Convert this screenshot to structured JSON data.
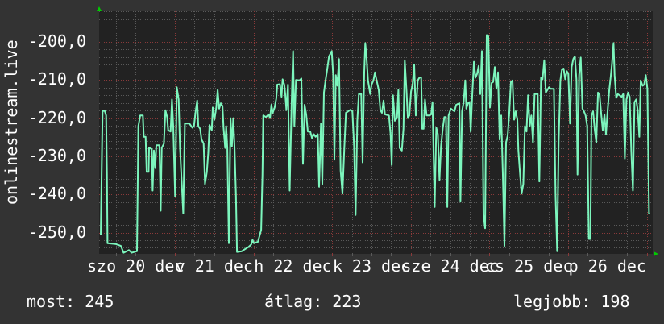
{
  "colors": {
    "background": "#333333",
    "plot_background": "#222222",
    "line": "#7cf6bd",
    "grid_minor": "#5a5a5a",
    "grid_major": "#8a3a3a",
    "arrow": "#00cc00"
  },
  "footer": {
    "current": "most: 245",
    "average": "átlag: 223",
    "best": "legjobb: 198"
  },
  "chart_data": {
    "type": "line",
    "ylabel": "onlinestream.live",
    "ylim": [
      -255.6,
      -192
    ],
    "yticks": [
      -200,
      -210,
      -220,
      -230,
      -240,
      -250
    ],
    "ytick_labels": [
      "-200,0",
      "-210,0",
      "-220,0",
      "-230,0",
      "-240,0",
      "-250,0"
    ],
    "xlim": [
      "dec 20 00:53",
      "dec 27 01:50"
    ],
    "xtick_labels": [
      {
        "at": "dec 20 12:00",
        "label": "szo 20 dec"
      },
      {
        "at": "dec 21 12:00",
        "label": "v 21 dec"
      },
      {
        "at": "dec 22 12:00",
        "label": "h 22 dec"
      },
      {
        "at": "dec 23 12:00",
        "label": "k 23 dec"
      },
      {
        "at": "dec 24 12:00",
        "label": "sze 24 dec"
      },
      {
        "at": "dec 25 12:00",
        "label": "cs 25 dec"
      },
      {
        "at": "dec 26 12:00",
        "label": "p 26 dec"
      }
    ],
    "grid": true,
    "points": [
      [
        "dec 20 01:23",
        -250.7
      ],
      [
        "dec 20 01:57",
        -218.1
      ],
      [
        "dec 20 02:37",
        -218.1
      ],
      [
        "dec 20 03:01",
        -219.3
      ],
      [
        "dec 20 03:16",
        -234.8
      ],
      [
        "dec 20 03:26",
        -252.8
      ],
      [
        "dec 20 05:53",
        -253.0
      ],
      [
        "dec 20 07:32",
        -253.5
      ],
      [
        "dec 20 08:21",
        -255.3
      ],
      [
        "dec 20 09:59",
        -254.6
      ],
      [
        "dec 20 10:49",
        -255.3
      ],
      [
        "dec 20 12:27",
        -254.9
      ],
      [
        "dec 20 12:52",
        -222.1
      ],
      [
        "dec 20 13:26",
        -219.3
      ],
      [
        "dec 20 14:15",
        -219.3
      ],
      [
        "dec 20 14:30",
        -224.9
      ],
      [
        "dec 20 15:04",
        -224.9
      ],
      [
        "dec 20 15:24",
        -234.1
      ],
      [
        "dec 20 15:59",
        -234.1
      ],
      [
        "dec 20 16:08",
        -227.8
      ],
      [
        "dec 20 16:58",
        -228.1
      ],
      [
        "dec 20 17:13",
        -239.0
      ],
      [
        "dec 20 17:37",
        -228.5
      ],
      [
        "dec 20 18:02",
        -233.1
      ],
      [
        "dec 20 18:21",
        -227.1
      ],
      [
        "dec 20 19:16",
        -227.1
      ],
      [
        "dec 20 19:40",
        -244.3
      ],
      [
        "dec 20 19:59",
        -227.8
      ],
      [
        "dec 20 20:39",
        -226.7
      ],
      [
        "dec 20 21:08",
        -217.9
      ],
      [
        "dec 20 21:38",
        -219.7
      ],
      [
        "dec 20 21:58",
        -223.2
      ],
      [
        "dec 20 22:42",
        -223.5
      ],
      [
        "dec 20 23:07",
        -215.1
      ],
      [
        "dec 20 23:31",
        -222.1
      ],
      [
        "dec 21 00:05",
        -240.5
      ],
      [
        "dec 21 00:35",
        -211.9
      ],
      [
        "dec 21 01:10",
        -215.1
      ],
      [
        "dec 21 01:34",
        -227.8
      ],
      [
        "dec 21 02:33",
        -245.0
      ],
      [
        "dec 21 03:03",
        -221.4
      ],
      [
        "dec 21 04:26",
        -221.4
      ],
      [
        "dec 21 05:20",
        -222.5
      ],
      [
        "dec 21 05:50",
        -222.1
      ],
      [
        "dec 21 06:20",
        -218.2
      ],
      [
        "dec 21 06:49",
        -215.4
      ],
      [
        "dec 21 07:09",
        -222.1
      ],
      [
        "dec 21 07:43",
        -222.8
      ],
      [
        "dec 21 08:08",
        -225.6
      ],
      [
        "dec 21 08:47",
        -226.7
      ],
      [
        "dec 21 09:12",
        -237.3
      ],
      [
        "dec 21 09:46",
        -234.1
      ],
      [
        "dec 21 10:11",
        -229.2
      ],
      [
        "dec 21 10:35",
        -221.8
      ],
      [
        "dec 21 11:15",
        -223.2
      ],
      [
        "dec 21 11:34",
        -217.2
      ],
      [
        "dec 21 12:04",
        -220.4
      ],
      [
        "dec 21 12:38",
        -217.2
      ],
      [
        "dec 21 13:03",
        -212.6
      ],
      [
        "dec 21 13:32",
        -217.5
      ],
      [
        "dec 21 14:02",
        -216.1
      ],
      [
        "dec 21 14:32",
        -216.8
      ],
      [
        "dec 21 14:51",
        -222.5
      ],
      [
        "dec 21 15:21",
        -227.8
      ],
      [
        "dec 21 15:40",
        -222.1
      ],
      [
        "dec 21 16:00",
        -227.8
      ],
      [
        "dec 21 16:29",
        -252.8
      ],
      [
        "dec 21 16:59",
        -220.0
      ],
      [
        "dec 21 17:24",
        -227.4
      ],
      [
        "dec 21 17:49",
        -220.0
      ],
      [
        "dec 21 18:13",
        -227.8
      ],
      [
        "dec 21 18:38",
        -240.1
      ],
      [
        "dec 21 18:57",
        -255.1
      ],
      [
        "dec 21 20:26",
        -254.9
      ],
      [
        "dec 21 21:40",
        -254.2
      ],
      [
        "dec 21 22:29",
        -253.8
      ],
      [
        "dec 21 23:18",
        -253.1
      ],
      [
        "dec 21 23:43",
        -251.9
      ],
      [
        "dec 22 00:07",
        -252.8
      ],
      [
        "dec 22 01:21",
        -252.4
      ],
      [
        "dec 22 02:20",
        -249.3
      ],
      [
        "dec 22 02:44",
        -234.8
      ],
      [
        "dec 22 02:59",
        -219.3
      ],
      [
        "dec 22 03:49",
        -219.7
      ],
      [
        "dec 22 04:38",
        -219.0
      ],
      [
        "dec 22 05:02",
        -220.0
      ],
      [
        "dec 22 05:27",
        -216.5
      ],
      [
        "dec 22 05:52",
        -218.6
      ],
      [
        "dec 22 06:26",
        -217.2
      ],
      [
        "dec 22 06:56",
        -214.9
      ],
      [
        "dec 22 07:15",
        -211.2
      ],
      [
        "dec 22 08:04",
        -211.1
      ],
      [
        "dec 22 08:34",
        -214.4
      ],
      [
        "dec 22 08:53",
        -209.8
      ],
      [
        "dec 22 09:23",
        -211.2
      ],
      [
        "dec 22 09:43",
        -214.0
      ],
      [
        "dec 22 10:02",
        -217.9
      ],
      [
        "dec 22 10:32",
        -211.2
      ],
      [
        "dec 22 11:02",
        -239.0
      ],
      [
        "dec 22 11:39",
        -215.4
      ],
      [
        "dec 22 12:04",
        -202.4
      ],
      [
        "dec 22 12:28",
        -222.1
      ],
      [
        "dec 22 12:58",
        -210.0
      ],
      [
        "dec 22 14:02",
        -210.1
      ],
      [
        "dec 22 14:36",
        -209.6
      ],
      [
        "dec 22 15:06",
        -232.0
      ],
      [
        "dec 22 15:35",
        -216.5
      ],
      [
        "dec 22 16:05",
        -219.0
      ],
      [
        "dec 22 16:34",
        -223.5
      ],
      [
        "dec 22 17:19",
        -223.5
      ],
      [
        "dec 22 17:53",
        -225.3
      ],
      [
        "dec 22 18:23",
        -224.2
      ],
      [
        "dec 22 18:57",
        -224.9
      ],
      [
        "dec 22 19:37",
        -224.2
      ],
      [
        "dec 22 20:01",
        -238.0
      ],
      [
        "dec 22 20:35",
        -221.4
      ],
      [
        "dec 22 21:00",
        -237.3
      ],
      [
        "dec 22 21:29",
        -213.3
      ],
      [
        "dec 22 21:59",
        -210.1
      ],
      [
        "dec 22 22:29",
        -207.3
      ],
      [
        "dec 22 23:03",
        -203.8
      ],
      [
        "dec 22 23:52",
        -202.4
      ],
      [
        "dec 23 00:17",
        -208.4
      ],
      [
        "dec 23 00:41",
        -230.9
      ],
      [
        "dec 23 01:06",
        -208.7
      ],
      [
        "dec 23 01:35",
        -211.5
      ],
      [
        "dec 23 02:05",
        -204.5
      ],
      [
        "dec 23 02:35",
        -233.8
      ],
      [
        "dec 23 03:09",
        -239.8
      ],
      [
        "dec 23 03:43",
        -227.8
      ],
      [
        "dec 23 04:13",
        -218.6
      ],
      [
        "dec 23 05:37",
        -217.8
      ],
      [
        "dec 23 06:11",
        -218.2
      ],
      [
        "dec 23 06:41",
        -227.4
      ],
      [
        "dec 23 07:10",
        -245.4
      ],
      [
        "dec 23 07:40",
        -220.7
      ],
      [
        "dec 23 08:09",
        -213.7
      ],
      [
        "dec 23 08:53",
        -213.7
      ],
      [
        "dec 23 09:18",
        -231.6
      ],
      [
        "dec 23 09:47",
        -208.0
      ],
      [
        "dec 23 10:07",
        -200.3
      ],
      [
        "dec 23 10:32",
        -204.5
      ],
      [
        "dec 23 10:56",
        -210.1
      ],
      [
        "dec 23 11:36",
        -213.7
      ],
      [
        "dec 23 12:01",
        -211.2
      ],
      [
        "dec 23 12:35",
        -210.1
      ],
      [
        "dec 23 13:04",
        -208.0
      ],
      [
        "dec 23 13:34",
        -210.1
      ],
      [
        "dec 23 14:13",
        -212.6
      ],
      [
        "dec 23 14:43",
        -217.9
      ],
      [
        "dec 23 15:12",
        -218.6
      ],
      [
        "dec 23 15:42",
        -215.4
      ],
      [
        "dec 23 16:07",
        -219.0
      ],
      [
        "dec 23 17:20",
        -219.3
      ],
      [
        "dec 23 17:50",
        -224.2
      ],
      [
        "dec 23 18:10",
        -232.3
      ],
      [
        "dec 23 18:34",
        -214.0
      ],
      [
        "dec 23 19:08",
        -220.7
      ],
      [
        "dec 23 19:48",
        -220.0
      ],
      [
        "dec 23 20:13",
        -212.6
      ],
      [
        "dec 23 20:37",
        -227.8
      ],
      [
        "dec 23 21:16",
        -228.5
      ],
      [
        "dec 23 21:46",
        -222.8
      ],
      [
        "dec 23 22:10",
        -204.8
      ],
      [
        "dec 23 22:40",
        -212.6
      ],
      [
        "dec 23 23:05",
        -220.0
      ],
      [
        "dec 23 23:34",
        -219.3
      ],
      [
        "dec 24 00:04",
        -213.0
      ],
      [
        "dec 24 00:33",
        -211.2
      ],
      [
        "dec 24 01:02",
        -205.9
      ],
      [
        "dec 24 01:32",
        -219.3
      ],
      [
        "dec 24 02:07",
        -210.1
      ],
      [
        "dec 24 02:41",
        -209.3
      ],
      [
        "dec 24 03:11",
        -209.4
      ],
      [
        "dec 24 03:30",
        -222.8
      ],
      [
        "dec 24 03:55",
        -222.8
      ],
      [
        "dec 24 04:19",
        -215.1
      ],
      [
        "dec 24 04:49",
        -219.3
      ],
      [
        "dec 24 05:38",
        -219.3
      ],
      [
        "dec 24 06:13",
        -219.0
      ],
      [
        "dec 24 06:37",
        -215.8
      ],
      [
        "dec 24 07:17",
        -243.3
      ],
      [
        "dec 24 07:46",
        -222.5
      ],
      [
        "dec 24 08:16",
        -224.2
      ],
      [
        "dec 24 08:45",
        -236.2
      ],
      [
        "dec 24 09:14",
        -227.4
      ],
      [
        "dec 24 09:44",
        -222.8
      ],
      [
        "dec 24 10:14",
        -219.7
      ],
      [
        "dec 24 10:43",
        -219.7
      ],
      [
        "dec 24 11:08",
        -243.3
      ],
      [
        "dec 24 11:32",
        -219.3
      ],
      [
        "dec 24 12:12",
        -217.5
      ],
      [
        "dec 24 13:20",
        -218.2
      ],
      [
        "dec 24 13:50",
        -216.5
      ],
      [
        "dec 24 14:49",
        -216.1
      ],
      [
        "dec 24 15:09",
        -241.9
      ],
      [
        "dec 24 15:38",
        -218.2
      ],
      [
        "dec 24 16:08",
        -215.8
      ],
      [
        "dec 24 16:37",
        -210.1
      ],
      [
        "dec 24 16:57",
        -217.5
      ],
      [
        "dec 24 17:26",
        -216.1
      ],
      [
        "dec 24 17:56",
        -215.8
      ],
      [
        "dec 24 18:16",
        -223.5
      ],
      [
        "dec 24 18:46",
        -213.7
      ],
      [
        "dec 24 19:15",
        -205.2
      ],
      [
        "dec 24 19:44",
        -209.4
      ],
      [
        "dec 24 20:13",
        -208.4
      ],
      [
        "dec 24 20:42",
        -206.3
      ],
      [
        "dec 24 21:12",
        -213.7
      ],
      [
        "dec 24 21:41",
        -202.4
      ],
      [
        "dec 24 22:11",
        -245.4
      ],
      [
        "dec 24 22:40",
        -248.9
      ],
      [
        "dec 24 23:10",
        -198.2
      ],
      [
        "dec 24 23:40",
        -198.5
      ],
      [
        "dec 25 00:09",
        -217.2
      ],
      [
        "dec 25 00:38",
        -210.8
      ],
      [
        "dec 25 01:08",
        -210.5
      ],
      [
        "dec 25 01:37",
        -206.6
      ],
      [
        "dec 25 02:07",
        -212.3
      ],
      [
        "dec 25 02:37",
        -208.0
      ],
      [
        "dec 25 03:06",
        -225.6
      ],
      [
        "dec 25 03:35",
        -219.3
      ],
      [
        "dec 25 04:05",
        -234.8
      ],
      [
        "dec 25 04:35",
        -253.5
      ],
      [
        "dec 25 05:04",
        -226.4
      ],
      [
        "dec 25 05:34",
        -224.6
      ],
      [
        "dec 25 06:03",
        -218.6
      ],
      [
        "dec 25 06:32",
        -210.5
      ],
      [
        "dec 25 07:02",
        -210.1
      ],
      [
        "dec 25 07:32",
        -220.4
      ],
      [
        "dec 25 08:01",
        -218.2
      ],
      [
        "dec 25 08:31",
        -220.4
      ],
      [
        "dec 25 08:50",
        -228.5
      ],
      [
        "dec 25 09:20",
        -234.8
      ],
      [
        "dec 25 09:49",
        -239.8
      ],
      [
        "dec 25 10:19",
        -237.3
      ],
      [
        "dec 25 10:49",
        -222.1
      ],
      [
        "dec 25 11:18",
        -223.5
      ],
      [
        "dec 25 11:47",
        -214.0
      ],
      [
        "dec 25 12:17",
        -222.1
      ],
      [
        "dec 25 12:47",
        -219.3
      ],
      [
        "dec 25 13:16",
        -226.4
      ],
      [
        "dec 25 13:46",
        -213.7
      ],
      [
        "dec 25 14:44",
        -213.7
      ],
      [
        "dec 25 15:14",
        -236.6
      ],
      [
        "dec 25 15:44",
        -209.4
      ],
      [
        "dec 25 16:13",
        -209.8
      ],
      [
        "dec 25 16:43",
        -204.8
      ],
      [
        "dec 25 17:12",
        -213.3
      ],
      [
        "dec 25 18:11",
        -211.9
      ],
      [
        "dec 25 18:41",
        -212.3
      ],
      [
        "dec 25 19:40",
        -212.3
      ],
      [
        "dec 25 20:10",
        -240.1
      ],
      [
        "dec 25 20:39",
        -254.9
      ],
      [
        "dec 25 21:08",
        -226.0
      ],
      [
        "dec 25 21:38",
        -210.1
      ],
      [
        "dec 25 22:07",
        -207.3
      ],
      [
        "dec 25 22:37",
        -207.0
      ],
      [
        "dec 25 23:07",
        -209.8
      ],
      [
        "dec 25 23:36",
        -207.7
      ],
      [
        "dec 26 00:05",
        -208.4
      ],
      [
        "dec 26 00:35",
        -221.4
      ],
      [
        "dec 26 01:05",
        -206.6
      ],
      [
        "dec 26 01:34",
        -204.5
      ],
      [
        "dec 26 02:04",
        -203.8
      ],
      [
        "dec 26 02:33",
        -210.1
      ],
      [
        "dec 26 02:53",
        -234.8
      ],
      [
        "dec 26 03:22",
        -208.7
      ],
      [
        "dec 26 03:52",
        -204.1
      ],
      [
        "dec 26 04:22",
        -217.5
      ],
      [
        "dec 26 04:51",
        -218.2
      ],
      [
        "dec 26 05:20",
        -219.3
      ],
      [
        "dec 26 05:50",
        -222.1
      ],
      [
        "dec 26 06:19",
        -251.7
      ],
      [
        "dec 26 06:49",
        -251.7
      ],
      [
        "dec 26 07:08",
        -219.3
      ],
      [
        "dec 26 07:38",
        -218.2
      ],
      [
        "dec 26 08:08",
        -223.2
      ],
      [
        "dec 26 08:37",
        -226.4
      ],
      [
        "dec 26 09:07",
        -213.3
      ],
      [
        "dec 26 09:36",
        -213.7
      ],
      [
        "dec 26 10:06",
        -219.0
      ],
      [
        "dec 26 10:35",
        -223.2
      ],
      [
        "dec 26 11:05",
        -219.0
      ],
      [
        "dec 26 11:34",
        -224.2
      ],
      [
        "dec 26 12:04",
        -217.9
      ],
      [
        "dec 26 12:34",
        -212.6
      ],
      [
        "dec 26 13:03",
        -208.7
      ],
      [
        "dec 26 13:23",
        -205.9
      ],
      [
        "dec 26 13:52",
        -200.3
      ],
      [
        "dec 26 14:12",
        -208.7
      ],
      [
        "dec 26 14:41",
        -214.7
      ],
      [
        "dec 26 15:11",
        -213.7
      ],
      [
        "dec 26 16:20",
        -214.4
      ],
      [
        "dec 26 16:49",
        -213.7
      ],
      [
        "dec 26 17:19",
        -230.6
      ],
      [
        "dec 26 17:48",
        -215.1
      ],
      [
        "dec 26 18:18",
        -213.3
      ],
      [
        "dec 26 18:47",
        -214.4
      ],
      [
        "dec 26 19:17",
        -228.5
      ],
      [
        "dec 26 19:46",
        -239.0
      ],
      [
        "dec 26 20:16",
        -215.8
      ],
      [
        "dec 26 20:46",
        -215.1
      ],
      [
        "dec 26 21:15",
        -217.9
      ],
      [
        "dec 26 21:44",
        -224.9
      ],
      [
        "dec 26 22:09",
        -210.1
      ],
      [
        "dec 26 22:43",
        -211.5
      ],
      [
        "dec 26 23:13",
        -211.2
      ],
      [
        "dec 26 23:43",
        -208.7
      ],
      [
        "dec 27 00:12",
        -212.3
      ],
      [
        "dec 27 00:41",
        -245.0
      ],
      [
        "dec 27 01:01",
        -245.0
      ]
    ]
  }
}
